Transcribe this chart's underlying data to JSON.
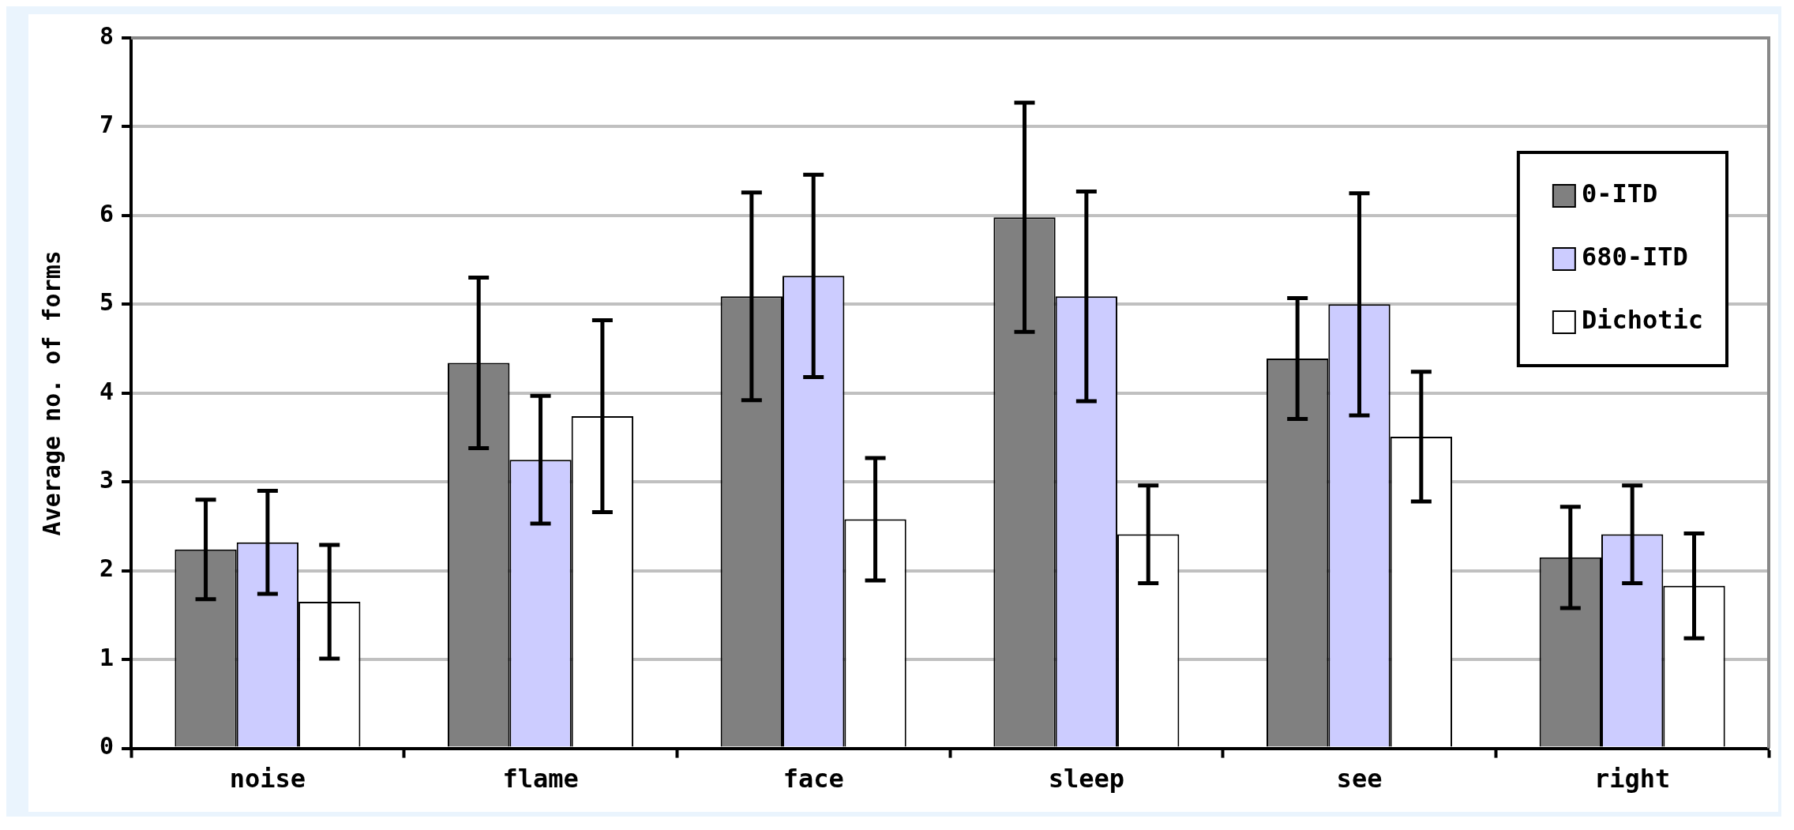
{
  "chart_data": {
    "type": "bar",
    "ylabel": "Average no. of forms",
    "categories": [
      "noise",
      "flame",
      "face",
      "sleep",
      "see",
      "right"
    ],
    "series": [
      {
        "name": "0-ITD",
        "color": "#808080",
        "values": [
          2.24,
          4.34,
          5.09,
          5.98,
          4.39,
          2.15
        ],
        "errors": [
          0.56,
          0.96,
          1.17,
          1.29,
          0.68,
          0.57
        ]
      },
      {
        "name": "680-ITD",
        "color": "#ccccff",
        "values": [
          2.32,
          3.25,
          5.32,
          5.09,
          5.0,
          2.41
        ],
        "errors": [
          0.58,
          0.72,
          1.14,
          1.18,
          1.25,
          0.55
        ]
      },
      {
        "name": "Dichotic",
        "color": "#ffffff",
        "values": [
          1.65,
          3.74,
          2.58,
          2.41,
          3.51,
          1.83
        ],
        "errors": [
          0.64,
          1.08,
          0.69,
          0.55,
          0.73,
          0.59
        ]
      }
    ],
    "ylim": [
      0,
      8
    ],
    "yticks": [
      0,
      1,
      2,
      3,
      4,
      5,
      6,
      7,
      8
    ],
    "grid": "y",
    "legend": "top right"
  }
}
